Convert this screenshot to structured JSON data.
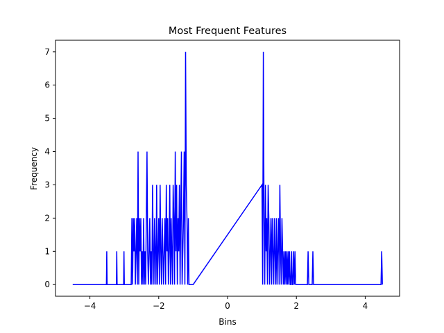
{
  "chart_data": {
    "type": "line",
    "title": "Most Frequent Features",
    "xlabel": "Bins",
    "ylabel": "Frequency",
    "xlim": [
      -5,
      5
    ],
    "ylim": [
      -0.35,
      7.35
    ],
    "xticks": [
      -4,
      -2,
      0,
      2,
      4
    ],
    "yticks": [
      0,
      1,
      2,
      3,
      4,
      5,
      6,
      7
    ],
    "grid": false,
    "line_color": "#0000ff",
    "series": [
      {
        "x": [
          -4.5,
          -3.52,
          -3.51,
          -3.5,
          -3.23,
          -3.22,
          -3.21,
          -3.02,
          -3.01,
          -3.0,
          -2.8,
          -2.78,
          -2.76,
          -2.74,
          -2.72,
          -2.7,
          -2.68,
          -2.66,
          -2.64,
          -2.62,
          -2.6,
          -2.58,
          -2.56,
          -2.54,
          -2.52,
          -2.5,
          -2.48,
          -2.46,
          -2.44,
          -2.42,
          -2.4,
          -2.38,
          -2.36,
          -2.34,
          -2.32,
          -2.3,
          -2.28,
          -2.26,
          -2.24,
          -2.22,
          -2.2,
          -2.18,
          -2.16,
          -2.14,
          -2.12,
          -2.1,
          -2.08,
          -2.06,
          -2.04,
          -2.02,
          -2.0,
          -1.98,
          -1.96,
          -1.94,
          -1.92,
          -1.9,
          -1.88,
          -1.86,
          -1.84,
          -1.82,
          -1.8,
          -1.78,
          -1.76,
          -1.74,
          -1.72,
          -1.7,
          -1.68,
          -1.66,
          -1.64,
          -1.62,
          -1.6,
          -1.58,
          -1.56,
          -1.54,
          -1.52,
          -1.5,
          -1.48,
          -1.46,
          -1.44,
          -1.42,
          -1.4,
          -1.38,
          -1.36,
          -1.34,
          -1.32,
          -1.3,
          -1.28,
          -1.26,
          -1.24,
          -1.22,
          -1.2,
          -1.18,
          -1.16,
          -1.14,
          -1.12,
          -1.1,
          -1.08,
          -1.06,
          -1.04,
          -1.02,
          -1.0,
          1.0,
          1.02,
          1.04,
          1.06,
          1.08,
          1.1,
          1.12,
          1.14,
          1.16,
          1.18,
          1.2,
          1.22,
          1.24,
          1.26,
          1.28,
          1.3,
          1.32,
          1.34,
          1.36,
          1.38,
          1.4,
          1.42,
          1.44,
          1.46,
          1.48,
          1.5,
          1.52,
          1.54,
          1.56,
          1.58,
          1.6,
          1.62,
          1.64,
          1.66,
          1.68,
          1.7,
          1.72,
          1.74,
          1.76,
          1.78,
          1.8,
          1.82,
          1.84,
          1.86,
          1.88,
          1.9,
          1.92,
          1.94,
          1.96,
          1.98,
          2.0,
          2.32,
          2.34,
          2.36,
          2.46,
          2.48,
          2.5,
          4.46,
          4.48,
          4.5
        ],
        "y": [
          0,
          0,
          1,
          0,
          0,
          1,
          0,
          0,
          1,
          0,
          0,
          2,
          0,
          2,
          1,
          2,
          0,
          1,
          2,
          0,
          4,
          0,
          2,
          1,
          2,
          0,
          1,
          0,
          2,
          0,
          1,
          0,
          2,
          4,
          1,
          0,
          1,
          2,
          0,
          1,
          0,
          3,
          1,
          0,
          2,
          1,
          0,
          3,
          0,
          1,
          2,
          0,
          3,
          1,
          0,
          2,
          1,
          0,
          1,
          2,
          0,
          3,
          1,
          2,
          0,
          1,
          3,
          0,
          2,
          1,
          0,
          3,
          2,
          0,
          4,
          1,
          3,
          0,
          2,
          1,
          3,
          0,
          2,
          4,
          0,
          1,
          2,
          4,
          0,
          7,
          3,
          2,
          0,
          2,
          0,
          0,
          0,
          0,
          0,
          0,
          0,
          3,
          0,
          7,
          2,
          0,
          3,
          1,
          2,
          0,
          3,
          2,
          0,
          1,
          2,
          0,
          2,
          1,
          0,
          2,
          1,
          0,
          2,
          0,
          1,
          2,
          0,
          3,
          1,
          0,
          2,
          1,
          0,
          1,
          0,
          1,
          0,
          1,
          0,
          1,
          0,
          1,
          0,
          0,
          1,
          0,
          0,
          1,
          0,
          1,
          0,
          0,
          0,
          1,
          0,
          0,
          1,
          0,
          0,
          1,
          0
        ]
      }
    ]
  }
}
